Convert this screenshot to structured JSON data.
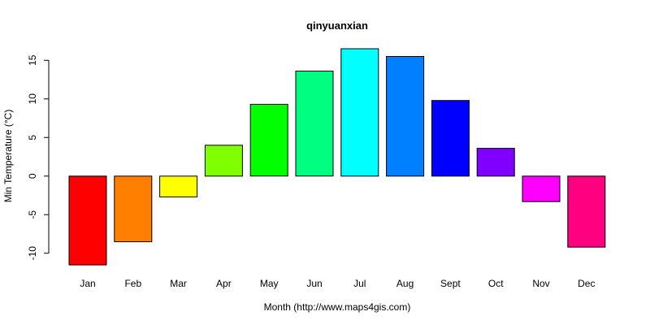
{
  "chart_data": {
    "type": "bar",
    "title": "qinyuanxian",
    "xlabel": "Month (http://www.maps4gis.com)",
    "ylabel": "Min Temperature (°C)",
    "categories": [
      "Jan",
      "Feb",
      "Mar",
      "Apr",
      "May",
      "Jun",
      "Jul",
      "Aug",
      "Sept",
      "Oct",
      "Nov",
      "Dec"
    ],
    "values": [
      -11.5,
      -8.5,
      -2.7,
      4.0,
      9.3,
      13.6,
      16.5,
      15.5,
      9.8,
      3.6,
      -3.3,
      -9.2
    ],
    "colors": [
      "#FF0000",
      "#FF8000",
      "#FFFF00",
      "#80FF00",
      "#00FF00",
      "#00FF80",
      "#00FFFF",
      "#0080FF",
      "#0000FF",
      "#8000FF",
      "#FF00FF",
      "#FF0080"
    ],
    "yticks": [
      "-10",
      "-5",
      "0",
      "5",
      "10",
      "15"
    ],
    "ylim": [
      -11.5,
      16.5
    ],
    "grid": false,
    "legend": "none"
  }
}
